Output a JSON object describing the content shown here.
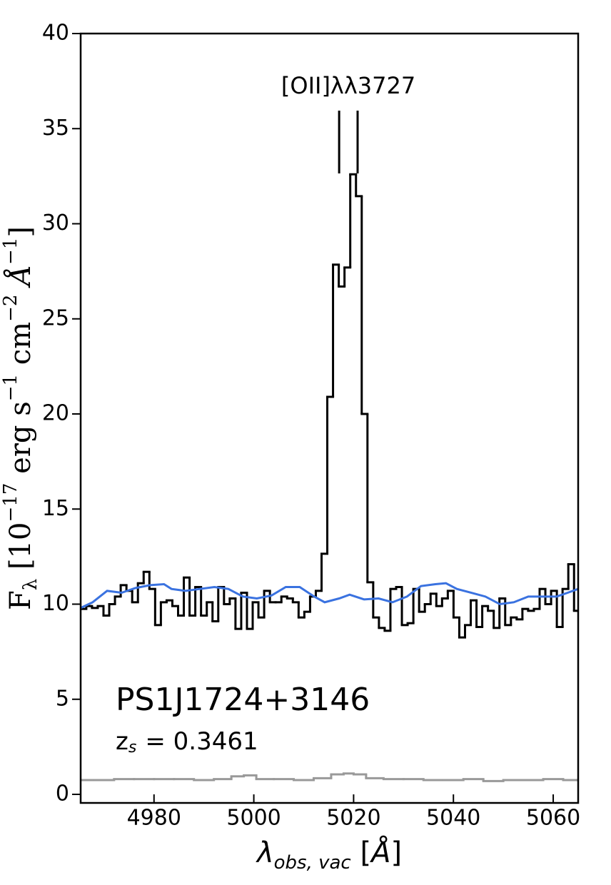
{
  "chart_data": {
    "type": "line",
    "drawstyle": "steps-mid",
    "xlim": [
      4965.3,
      5065.0
    ],
    "ylim": [
      -0.45,
      40
    ],
    "xticks": [
      4980,
      5000,
      5020,
      5040,
      5060
    ],
    "yticks": [
      0,
      5,
      10,
      15,
      20,
      25,
      30,
      35,
      40
    ],
    "x_label": [
      {
        "text": "λ",
        "style": "it"
      },
      {
        "text": "obs, vac",
        "style": "sub-it"
      },
      {
        "text": " [",
        "style": "normal"
      },
      {
        "text": "Å",
        "style": "it"
      },
      {
        "text": "]",
        "style": "normal"
      }
    ],
    "y_label": [
      {
        "text": "F",
        "style": "normal"
      },
      {
        "text": "λ",
        "style": "sub"
      },
      {
        "text": " [10",
        "style": "normal"
      },
      {
        "text": "−17",
        "style": "sup"
      },
      {
        "text": " erg s",
        "style": "normal"
      },
      {
        "text": "−1",
        "style": "sup"
      },
      {
        "text": " cm",
        "style": "normal"
      },
      {
        "text": "−2",
        "style": "sup"
      },
      {
        "text": " Å",
        "style": "it"
      },
      {
        "text": "−1",
        "style": "sup"
      },
      {
        "text": "]",
        "style": "normal"
      }
    ],
    "object_name": "PS1J1724+3146",
    "redshift_label": {
      "main": "z",
      "sub": "s",
      "rest": "= 0.3461"
    },
    "line_marker": {
      "label": "[OII]λλ3727",
      "x": [
        5017.1,
        5020.8
      ]
    },
    "series": [
      {
        "color": "#000000",
        "style": "steps",
        "x": [
          4965.85,
          4967.0,
          4968.15,
          4969.3,
          4970.45,
          4971.6,
          4972.75,
          4973.9,
          4975.05,
          4976.2,
          4977.35,
          4978.5,
          4979.65,
          4980.8,
          4981.95,
          4983.1,
          4984.25,
          4985.4,
          4986.55,
          4987.7,
          4988.85,
          4990.0,
          4991.15,
          4992.3,
          4993.45,
          4994.6,
          4995.75,
          4996.9,
          4998.05,
          4999.2,
          5000.35,
          5001.5,
          5002.65,
          5003.8,
          5004.95,
          5006.1,
          5007.25,
          5008.4,
          5009.55,
          5010.7,
          5011.85,
          5013.0,
          5014.15,
          5015.3,
          5016.45,
          5017.6,
          5018.75,
          5019.9,
          5021.05,
          5022.2,
          5023.35,
          5024.5,
          5025.65,
          5026.8,
          5027.95,
          5029.1,
          5030.25,
          5031.4,
          5032.55,
          5033.7,
          5034.85,
          5036.0,
          5037.15,
          5038.3,
          5039.45,
          5040.6,
          5041.75,
          5042.9,
          5044.05,
          5045.2,
          5046.35,
          5047.5,
          5048.65,
          5049.8,
          5050.95,
          5052.1,
          5053.25,
          5054.4,
          5055.55,
          5056.7,
          5057.85,
          5059.0,
          5060.15,
          5061.3,
          5062.45,
          5063.6,
          5064.75
        ],
        "values": [
          9.75,
          9.9,
          9.8,
          9.9,
          9.4,
          10.0,
          10.4,
          11.0,
          10.7,
          10.1,
          11.1,
          11.7,
          10.8,
          8.9,
          10.1,
          10.2,
          9.9,
          9.4,
          11.4,
          9.4,
          10.9,
          9.4,
          10.1,
          9.1,
          10.9,
          10.0,
          10.3,
          8.7,
          10.6,
          8.7,
          10.1,
          9.3,
          10.7,
          10.1,
          10.1,
          10.4,
          10.3,
          10.1,
          9.3,
          9.6,
          10.4,
          10.7,
          12.65,
          20.9,
          27.85,
          26.7,
          27.7,
          32.6,
          31.45,
          20.0,
          11.15,
          9.3,
          8.75,
          8.6,
          10.8,
          10.9,
          8.9,
          9.0,
          10.8,
          9.6,
          10.0,
          10.55,
          9.9,
          10.3,
          10.7,
          9.3,
          8.25,
          8.9,
          10.2,
          8.8,
          9.9,
          9.65,
          8.75,
          10.3,
          8.9,
          9.3,
          9.2,
          9.75,
          9.65,
          9.75,
          10.8,
          10.0,
          10.7,
          8.8,
          10.8,
          12.1,
          9.65
        ]
      },
      {
        "color": "#3a72e0",
        "style": "line",
        "x": [
          4965.3,
          4967.7,
          4970.6,
          4973.5,
          4976.3,
          4979.2,
          4982.0,
          4983.5,
          4986.3,
          4989.2,
          4992.1,
          4994.9,
          4997.8,
          5000.6,
          5003.5,
          5006.4,
          5009.2,
          5012.1,
          5014.2,
          5017.1,
          5019.2,
          5022.1,
          5025.0,
          5027.8,
          5030.7,
          5033.5,
          5036.4,
          5038.5,
          5040.7,
          5043.6,
          5046.4,
          5049.3,
          5052.1,
          5055.0,
          5057.9,
          5060.7,
          5062.9,
          5065.0
        ],
        "values": [
          9.8,
          10.1,
          10.7,
          10.6,
          10.85,
          11.0,
          11.05,
          10.8,
          10.7,
          10.8,
          10.9,
          10.8,
          10.4,
          10.3,
          10.45,
          10.9,
          10.9,
          10.4,
          10.1,
          10.3,
          10.5,
          10.25,
          10.3,
          10.1,
          10.4,
          10.95,
          11.05,
          11.1,
          10.8,
          10.6,
          10.4,
          10.0,
          10.1,
          10.4,
          10.4,
          10.4,
          10.6,
          10.8
        ]
      },
      {
        "color": "#999999",
        "style": "steps",
        "x": [
          4966,
          4970,
          4974,
          4978,
          4982,
          4986,
          4990,
          4994,
          4997,
          4999,
          5002,
          5006,
          5010,
          5014,
          5017,
          5019,
          5021,
          5024,
          5028,
          5032,
          5036,
          5040,
          5044,
          5048,
          5052,
          5056,
          5060,
          5064
        ],
        "values": [
          0.75,
          0.75,
          0.8,
          0.8,
          0.8,
          0.8,
          0.75,
          0.8,
          0.95,
          1.0,
          0.8,
          0.8,
          0.75,
          0.85,
          1.05,
          1.1,
          1.05,
          0.85,
          0.8,
          0.8,
          0.75,
          0.75,
          0.8,
          0.7,
          0.75,
          0.75,
          0.8,
          0.75
        ]
      }
    ]
  }
}
